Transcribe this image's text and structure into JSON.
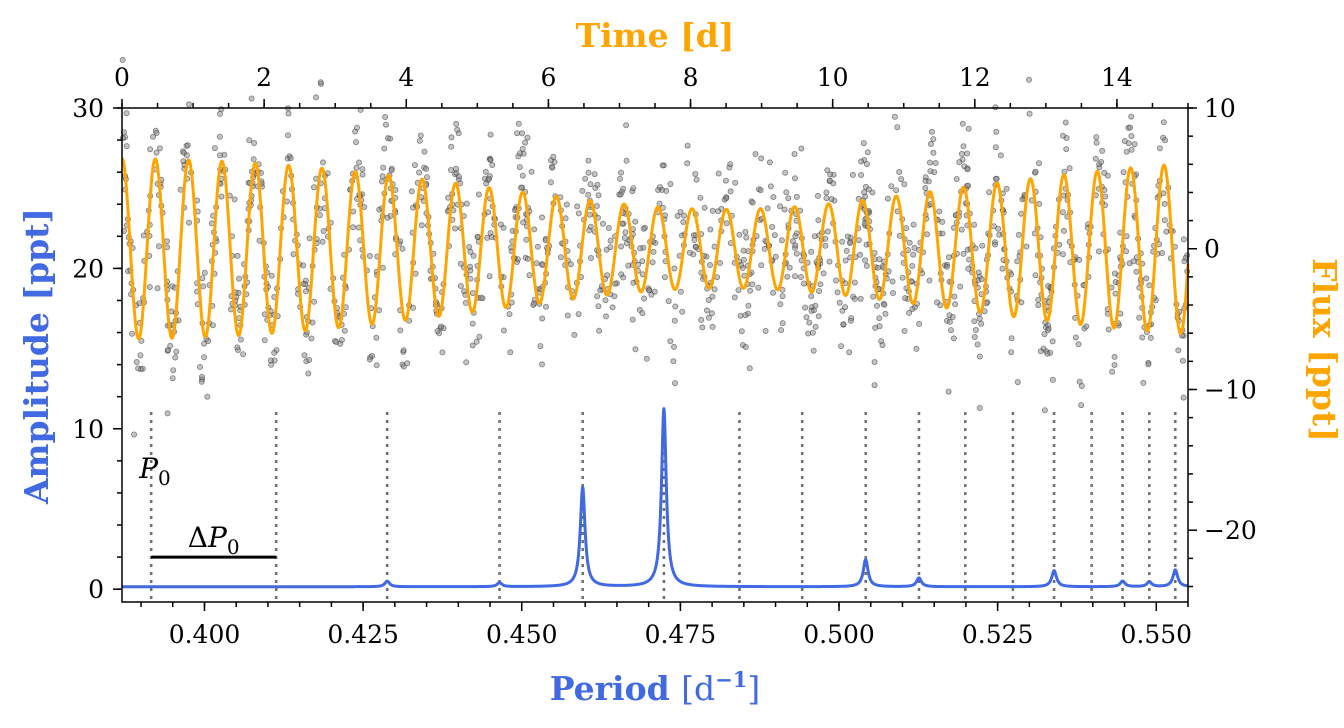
{
  "chart_data": {
    "type": "line",
    "colors": {
      "periodogram": "#4169e1",
      "flux": "#ffa500",
      "points": "#000000",
      "markers": "#6e6e6e"
    },
    "axes": {
      "bottom": {
        "label_text": "Period",
        "label_unit": "[d",
        "label_exp": "−1",
        "label_close": "]",
        "range": [
          0.387,
          0.555
        ],
        "ticks": [
          0.4,
          0.425,
          0.45,
          0.475,
          0.5,
          0.525,
          0.55
        ],
        "tick_labels": [
          "0.400",
          "0.425",
          "0.450",
          "0.475",
          "0.500",
          "0.525",
          "0.550"
        ]
      },
      "left": {
        "label": "Amplitude [ppt]",
        "range": [
          -0.8,
          30
        ],
        "ticks": [
          0,
          10,
          20,
          30
        ],
        "tick_labels": [
          "0",
          "10",
          "20",
          "30"
        ]
      },
      "top": {
        "label": "Time [d]",
        "range": [
          0,
          15
        ],
        "ticks": [
          0,
          2,
          4,
          6,
          8,
          10,
          12,
          14
        ],
        "tick_labels": [
          "0",
          "2",
          "4",
          "6",
          "8",
          "10",
          "12",
          "14"
        ]
      },
      "right": {
        "label": "Flux [ppt]",
        "range": [
          -25.1,
          10
        ],
        "ticks": [
          10,
          0,
          -10,
          -20
        ],
        "tick_labels": [
          "10",
          "0",
          "−10",
          "−20"
        ]
      }
    },
    "periodogram": {
      "baseline": 0.15,
      "peaks": [
        {
          "period": 0.4288,
          "amplitude": 0.35
        },
        {
          "period": 0.4465,
          "amplitude": 0.25
        },
        {
          "period": 0.4596,
          "amplitude": 6.2
        },
        {
          "period": 0.4724,
          "amplitude": 11.1
        },
        {
          "period": 0.5042,
          "amplitude": 1.7
        },
        {
          "period": 0.5126,
          "amplitude": 0.55
        },
        {
          "period": 0.5339,
          "amplitude": 1.0
        },
        {
          "period": 0.5447,
          "amplitude": 0.35
        },
        {
          "period": 0.5489,
          "amplitude": 0.3
        },
        {
          "period": 0.553,
          "amplitude": 1.05
        }
      ]
    },
    "period_markers": [
      0.3916,
      0.4113,
      0.4288,
      0.4465,
      0.4596,
      0.4724,
      0.4843,
      0.4942,
      0.5042,
      0.5126,
      0.5199,
      0.5274,
      0.5339,
      0.5398,
      0.5447,
      0.5489,
      0.553
    ],
    "annotations": {
      "p0_main": "P",
      "p0_sub": "0",
      "dp0_delta": "Δ",
      "dp0_main": "P",
      "dp0_sub": "0",
      "dp0_range": [
        0.3916,
        0.4113
      ],
      "dp0_amplitude": 2.0
    },
    "flux_model": {
      "components": [
        {
          "period_days": 0.4596,
          "amplitude": 1.8
        },
        {
          "period_days": 0.4724,
          "amplitude": 4.6
        }
      ]
    },
    "flux_points": {
      "count": 1500,
      "style": "gray translucent circles"
    }
  }
}
